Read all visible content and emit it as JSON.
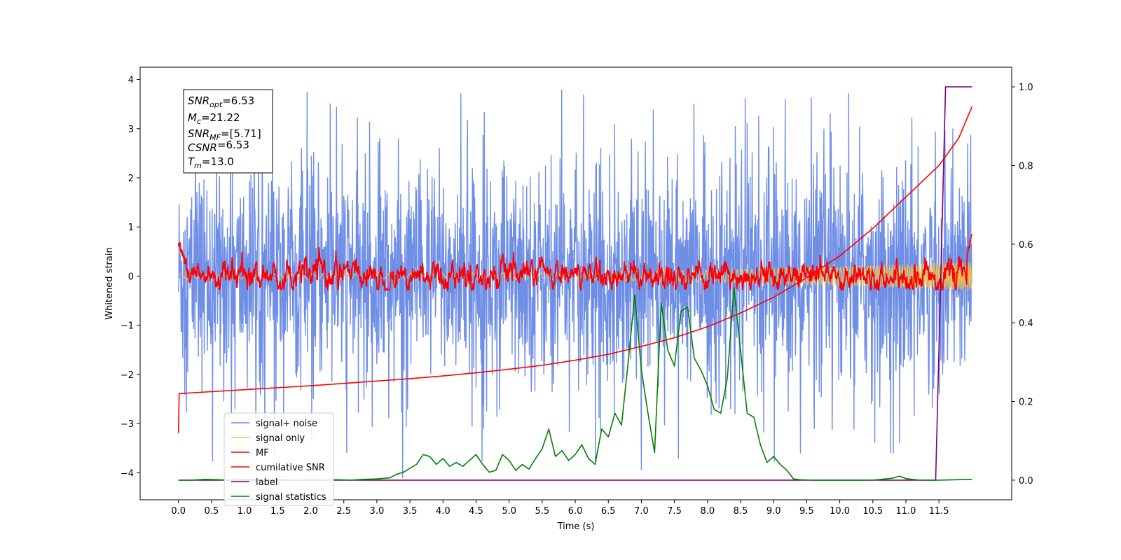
{
  "chart_data": {
    "type": "line",
    "xlabel": "Time (s)",
    "ylabel": "Whitened strain",
    "xlim": [
      -0.58,
      12.6
    ],
    "ylim": [
      -4.55,
      4.25
    ],
    "y2lim": [
      -0.05,
      1.05
    ],
    "xticks": [
      "0.0",
      "0.5",
      "1.0",
      "1.5",
      "2.0",
      "2.5",
      "3.0",
      "3.5",
      "4.0",
      "4.5",
      "5.0",
      "5.5",
      "6.0",
      "6.5",
      "7.0",
      "7.5",
      "8.0",
      "8.5",
      "9.0",
      "9.5",
      "10.0",
      "10.5",
      "11.0",
      "11.5"
    ],
    "yticks": [
      "4",
      "3",
      "2",
      "1",
      "0",
      "−1",
      "−2",
      "−3",
      "−4"
    ],
    "y2ticks": [
      "1.0",
      "0.8",
      "0.6",
      "0.4",
      "0.2",
      "0.0"
    ],
    "grid": false,
    "legend_position": "lower-left",
    "annotation": {
      "lines": [
        {
          "label": "SNR",
          "sub": "opt",
          "value": "=6.53"
        },
        {
          "label": "M",
          "sub": "c",
          "value": "=21.22"
        },
        {
          "label": "SNR",
          "sub": "MF",
          "value": "=[5.71]"
        },
        {
          "label": "CSNR",
          "sub": "",
          "value": "=6.53"
        },
        {
          "label": "T",
          "sub": "m",
          "value": "=13.0"
        }
      ]
    },
    "series": [
      {
        "name": "signal+ noise",
        "axis": "left",
        "color": "#6f8ee6",
        "kind": "noise",
        "t_range": [
          0,
          12.0
        ],
        "envelope": [
          -2.5,
          2.5
        ],
        "spike_range": [
          -4.1,
          3.85
        ]
      },
      {
        "name": "signal only",
        "axis": "left",
        "color": "#f2c14e",
        "kind": "chirp",
        "t_range": [
          0,
          12.0
        ],
        "amplitude_start": 0.05,
        "amplitude_end": 0.3
      },
      {
        "name": "MF",
        "axis": "left",
        "color": "#ff0000",
        "kind": "noise",
        "t_range": [
          0,
          12.0
        ],
        "envelope": [
          -0.28,
          0.5
        ],
        "start_value": 0.7,
        "end_value": 0.85
      },
      {
        "name": "cumilative SNR",
        "axis": "right",
        "color": "#ff0000",
        "x": [
          0.0,
          0.01,
          0.5,
          1.0,
          1.5,
          2.0,
          2.5,
          3.0,
          3.5,
          4.0,
          4.5,
          5.0,
          5.5,
          6.0,
          6.5,
          7.0,
          7.5,
          8.0,
          8.5,
          9.0,
          9.5,
          10.0,
          10.5,
          11.0,
          11.5,
          11.8,
          12.0
        ],
        "values": [
          0.12,
          0.22,
          0.225,
          0.23,
          0.235,
          0.24,
          0.246,
          0.252,
          0.258,
          0.265,
          0.273,
          0.282,
          0.292,
          0.305,
          0.32,
          0.34,
          0.362,
          0.39,
          0.425,
          0.465,
          0.515,
          0.57,
          0.64,
          0.72,
          0.8,
          0.87,
          0.95
        ]
      },
      {
        "name": "label",
        "axis": "right",
        "color": "#7a007a",
        "x": [
          0.0,
          11.45,
          11.6,
          12.0
        ],
        "values": [
          0.0,
          0.0,
          1.0,
          1.0
        ]
      },
      {
        "name": "signal statistics",
        "axis": "right",
        "color": "#008000",
        "x": [
          0.0,
          0.2,
          0.4,
          0.6,
          0.8,
          1.0,
          1.2,
          1.4,
          1.6,
          1.8,
          2.0,
          2.2,
          2.4,
          2.6,
          2.8,
          3.0,
          3.2,
          3.3,
          3.4,
          3.5,
          3.6,
          3.7,
          3.8,
          3.9,
          4.0,
          4.1,
          4.2,
          4.3,
          4.4,
          4.5,
          4.6,
          4.7,
          4.8,
          4.9,
          5.0,
          5.1,
          5.2,
          5.3,
          5.4,
          5.5,
          5.6,
          5.7,
          5.8,
          5.9,
          6.0,
          6.1,
          6.2,
          6.3,
          6.4,
          6.5,
          6.6,
          6.7,
          6.8,
          6.9,
          7.0,
          7.1,
          7.2,
          7.3,
          7.4,
          7.5,
          7.6,
          7.7,
          7.8,
          7.9,
          8.0,
          8.1,
          8.2,
          8.3,
          8.4,
          8.5,
          8.6,
          8.7,
          8.8,
          8.9,
          9.0,
          9.1,
          9.2,
          9.3,
          9.4,
          9.6,
          10.0,
          10.5,
          10.8,
          10.9,
          11.0,
          11.2,
          11.5,
          12.0
        ],
        "values": [
          0.0,
          0.0,
          0.002,
          0.001,
          0.0,
          0.002,
          0.001,
          0.0,
          0.001,
          0.0,
          0.001,
          0.0,
          0.001,
          0.0,
          0.002,
          0.003,
          0.006,
          0.015,
          0.02,
          0.03,
          0.04,
          0.065,
          0.06,
          0.04,
          0.055,
          0.035,
          0.045,
          0.035,
          0.05,
          0.065,
          0.04,
          0.02,
          0.025,
          0.065,
          0.05,
          0.025,
          0.04,
          0.028,
          0.055,
          0.08,
          0.13,
          0.06,
          0.075,
          0.05,
          0.065,
          0.09,
          0.055,
          0.04,
          0.13,
          0.11,
          0.17,
          0.14,
          0.3,
          0.47,
          0.28,
          0.17,
          0.07,
          0.45,
          0.33,
          0.29,
          0.43,
          0.44,
          0.31,
          0.28,
          0.24,
          0.18,
          0.17,
          0.26,
          0.49,
          0.33,
          0.17,
          0.16,
          0.09,
          0.045,
          0.06,
          0.04,
          0.025,
          0.003,
          0.001,
          0.0,
          0.0,
          0.0,
          0.005,
          0.01,
          0.004,
          0.0,
          0.0,
          0.002
        ]
      }
    ]
  }
}
